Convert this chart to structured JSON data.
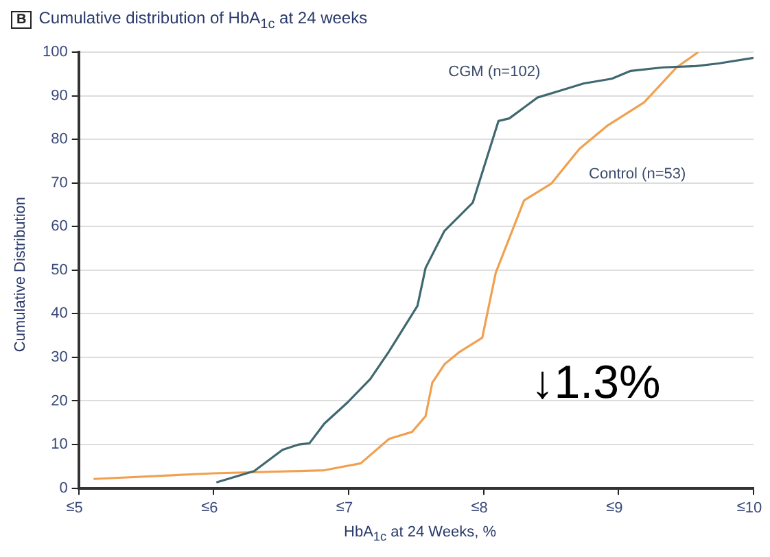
{
  "chart_data": {
    "type": "line",
    "title": "Cumulative distribution of HbA$_{1c}$ at 24 weeks",
    "xlabel": "HbA$_{1c}$ at 24 Weeks, %",
    "ylabel": "Cumulative Distribution",
    "annotations": [
      "B",
      "↓1.3%",
      "≤"
    ],
    "xlim": [
      5,
      10
    ],
    "xticks": [
      5,
      6,
      7,
      8,
      9,
      10
    ],
    "ylim": [
      0,
      100
    ],
    "yticks": [
      0,
      10,
      20,
      30,
      40,
      50,
      60,
      70,
      80,
      90,
      100
    ],
    "grid": "y",
    "legend": false,
    "marker": "none",
    "line_style": "solid",
    "series": [
      {
        "name": "CGM (n=102)",
        "color": "#3f6870",
        "x": [
          6.02,
          6.3,
          6.51,
          6.63,
          6.71,
          6.82,
          6.99,
          7.16,
          7.3,
          7.51,
          7.57,
          7.71,
          7.92,
          8.11,
          8.19,
          8.4,
          8.57,
          8.74,
          8.95,
          9.09,
          9.33,
          9.57,
          9.74,
          10
        ],
        "values": [
          1.3,
          3.9,
          8.8,
          10,
          10.3,
          14.8,
          19.6,
          25,
          31.4,
          41.8,
          50.5,
          59,
          65.5,
          84.2,
          84.8,
          89.6,
          91.2,
          92.8,
          93.9,
          95.7,
          96.5,
          96.8,
          97.4,
          98.7
        ]
      },
      {
        "name": "Control (n=53)",
        "color": "#f0a050",
        "x": [
          5.11,
          6,
          6.82,
          7.09,
          7.3,
          7.47,
          7.57,
          7.62,
          7.71,
          7.82,
          7.99,
          8.09,
          8.3,
          8.5,
          8.71,
          8.92,
          9.19,
          9.43,
          9.59
        ],
        "values": [
          2.1,
          3.4,
          4.1,
          5.7,
          11.3,
          12.9,
          16.5,
          24.2,
          28.4,
          31.2,
          34.5,
          49.4,
          66,
          69.8,
          77.8,
          83.2,
          88.5,
          96.5,
          100
        ]
      }
    ]
  }
}
